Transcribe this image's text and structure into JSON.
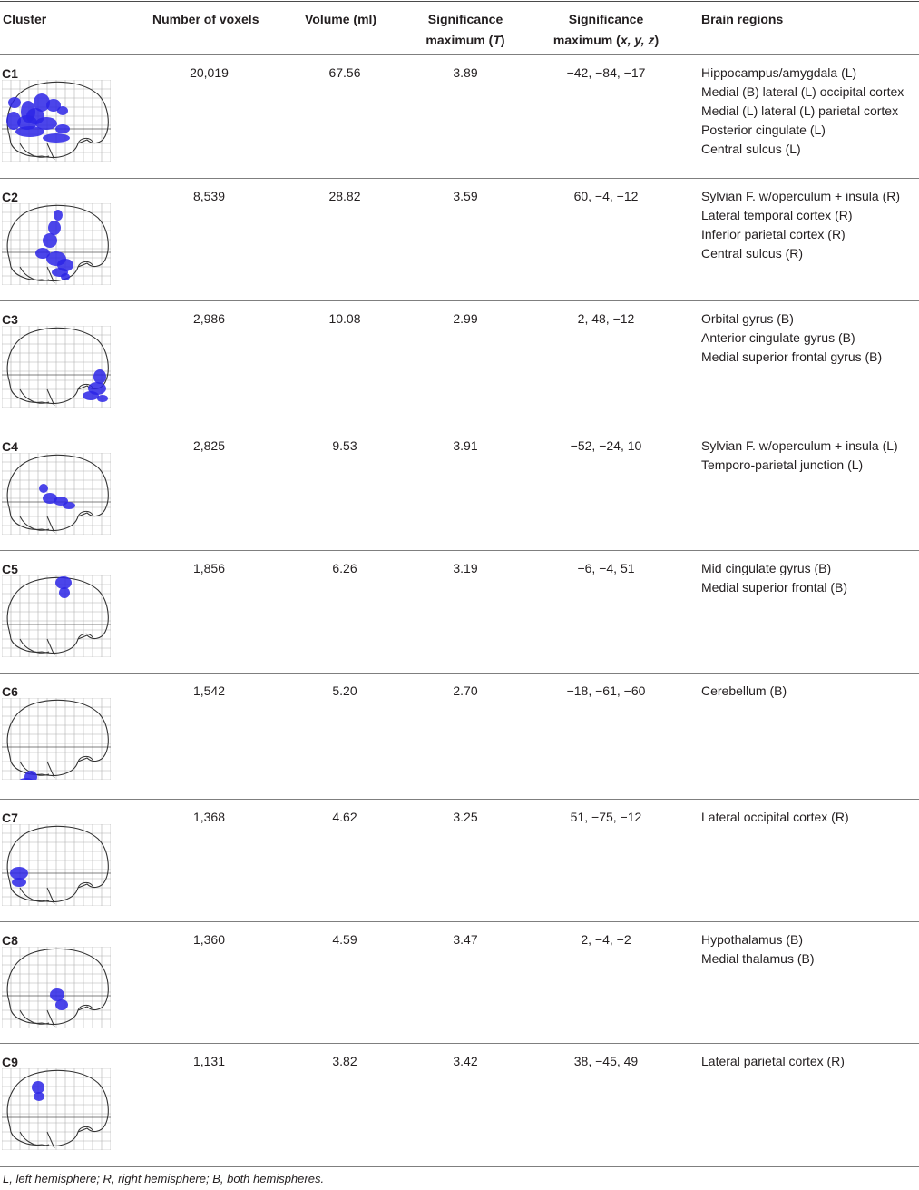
{
  "table": {
    "headers": {
      "cluster": "Cluster",
      "voxels": "Number of voxels",
      "volume": "Volume (ml)",
      "sig_t_line1": "Significance",
      "sig_t_line2_pre": "maximum (",
      "sig_t_line2_var": "T",
      "sig_t_line2_post": ")",
      "sig_xyz_line1": "Significance",
      "sig_xyz_line2_pre": "maximum (",
      "sig_xyz_line2_var": "x, y, z",
      "sig_xyz_line2_post": ")",
      "regions": "Brain regions"
    },
    "rows": [
      {
        "cluster": "C1",
        "voxels": "20,019",
        "volume": "67.56",
        "t": "3.89",
        "xyz": "−42, −84, −17",
        "regions": [
          "Hippocampus/amygdala (L)",
          "Medial (B) lateral (L) occipital cortex",
          "Medial (L) lateral (L) parietal cortex",
          "Posterior cingulate (L)",
          "Central sulcus (L)"
        ]
      },
      {
        "cluster": "C2",
        "voxels": "8,539",
        "volume": "28.82",
        "t": "3.59",
        "xyz": "60, −4, −12",
        "regions": [
          "Sylvian F. w/operculum + insula (R)",
          "Lateral temporal cortex (R)",
          "Inferior parietal cortex (R)",
          "Central sulcus (R)"
        ]
      },
      {
        "cluster": "C3",
        "voxels": "2,986",
        "volume": "10.08",
        "t": "2.99",
        "xyz": "2, 48, −12",
        "regions": [
          "Orbital gyrus (B)",
          "Anterior cingulate gyrus (B)",
          "Medial superior frontal gyrus (B)"
        ]
      },
      {
        "cluster": "C4",
        "voxels": "2,825",
        "volume": "9.53",
        "t": "3.91",
        "xyz": "−52, −24, 10",
        "regions": [
          "Sylvian F. w/operculum + insula (L)",
          "Temporo-parietal junction (L)"
        ]
      },
      {
        "cluster": "C5",
        "voxels": "1,856",
        "volume": "6.26",
        "t": "3.19",
        "xyz": "−6, −4, 51",
        "regions": [
          "Mid cingulate gyrus (B)",
          "Medial superior frontal (B)"
        ]
      },
      {
        "cluster": "C6",
        "voxels": "1,542",
        "volume": "5.20",
        "t": "2.70",
        "xyz": "−18, −61, −60",
        "regions": [
          "Cerebellum (B)"
        ]
      },
      {
        "cluster": "C7",
        "voxels": "1,368",
        "volume": "4.62",
        "t": "3.25",
        "xyz": "51, −75, −12",
        "regions": [
          "Lateral occipital cortex (R)"
        ]
      },
      {
        "cluster": "C8",
        "voxels": "1,360",
        "volume": "4.59",
        "t": "3.47",
        "xyz": "2, −4, −2",
        "regions": [
          "Hypothalamus (B)",
          "Medial thalamus (B)"
        ]
      },
      {
        "cluster": "C9",
        "voxels": "1,131",
        "volume": "3.82",
        "t": "3.42",
        "xyz": "38, −45, 49",
        "regions": [
          "Lateral parietal cortex (R)"
        ]
      }
    ]
  },
  "footnote": "L, left hemisphere; R, right hemisphere; B, both hemispheres.",
  "colors": {
    "blob": "#2b24e6",
    "grid": "#b0b0b0",
    "outline": "#333333"
  }
}
